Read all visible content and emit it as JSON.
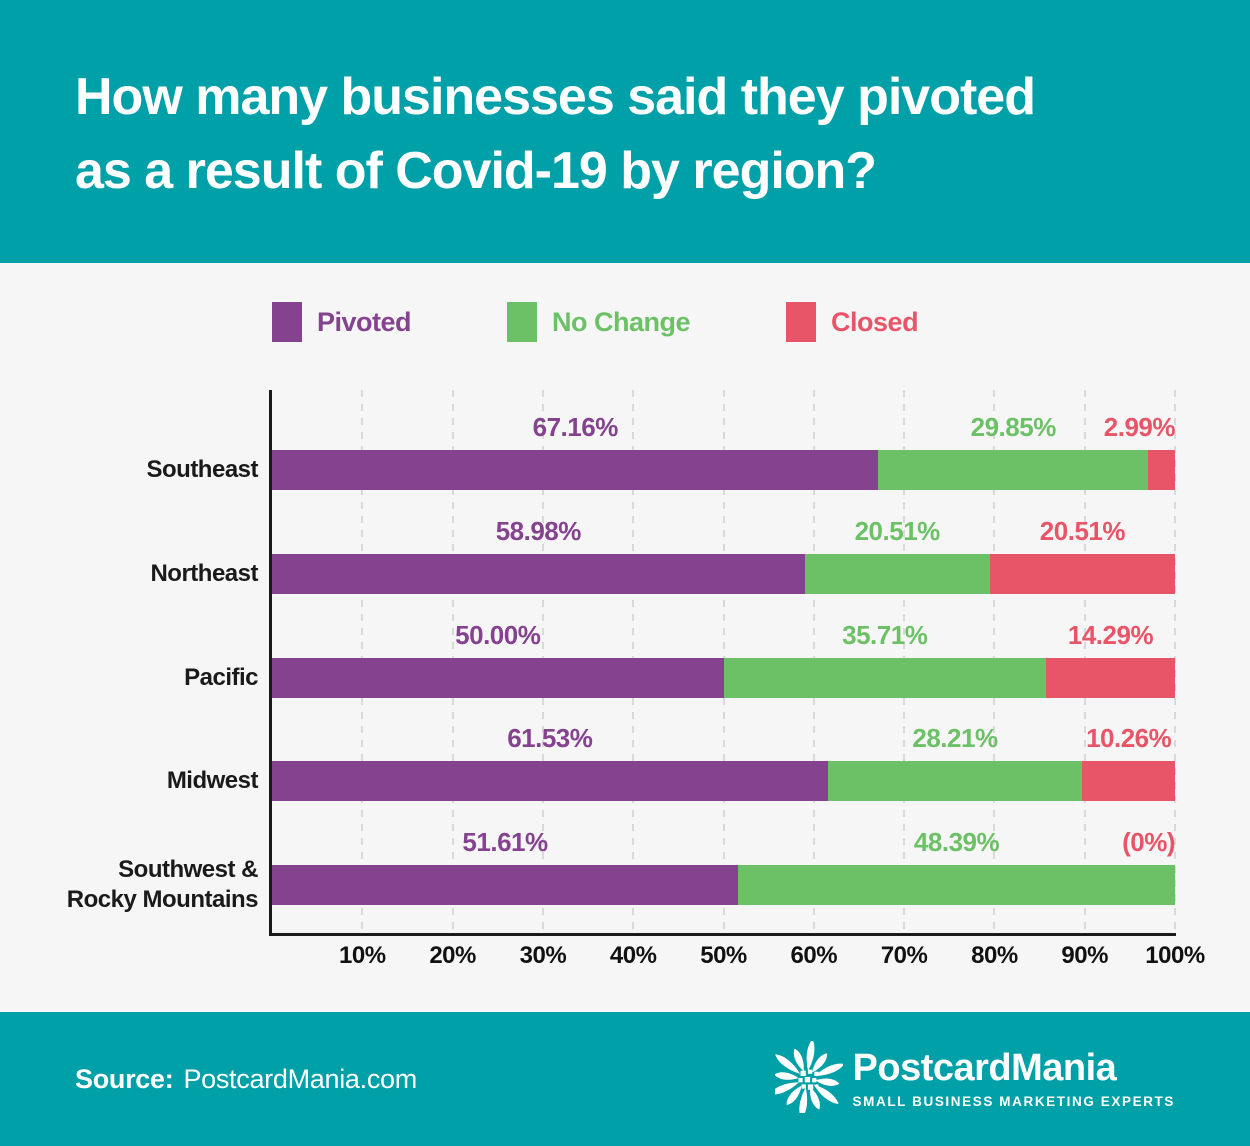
{
  "header": {
    "title": "How many businesses said they pivoted as a result of Covid-19 by region?",
    "title_lines": [
      "How many businesses said they pivoted",
      "as a result of Covid-19 by region?"
    ]
  },
  "chart_data": {
    "type": "bar",
    "orientation": "horizontal",
    "stacked": true,
    "grid": "dashed-vertical",
    "legend_position": "top",
    "xlim": [
      0,
      100
    ],
    "categories": [
      "Southeast",
      "Northeast",
      "Pacific",
      "Midwest",
      "Southwest & Rocky Mountains"
    ],
    "series": [
      {
        "name": "Pivoted",
        "color": "#84428F",
        "values": [
          67.16,
          58.98,
          50.0,
          61.53,
          51.61
        ],
        "labels": [
          "67.16%",
          "58.98%",
          "50.00%",
          "61.53%",
          "51.61%"
        ]
      },
      {
        "name": "No Change",
        "color": "#6CC166",
        "values": [
          29.85,
          20.51,
          35.71,
          28.21,
          48.39
        ],
        "labels": [
          "29.85%",
          "20.51%",
          "35.71%",
          "28.21%",
          "48.39%"
        ]
      },
      {
        "name": "Closed",
        "color": "#E95568",
        "values": [
          2.99,
          20.51,
          14.29,
          10.26,
          0
        ],
        "labels": [
          "2.99%",
          "20.51%",
          "14.29%",
          "10.26%",
          "(0%)"
        ]
      }
    ],
    "x_ticks": [
      "10%",
      "20%",
      "30%",
      "40%",
      "50%",
      "60%",
      "70%",
      "80%",
      "90%",
      "100%"
    ]
  },
  "footer": {
    "source_label": "Source:",
    "source_value": "PostcardMania.com",
    "logo": {
      "icon": "flower-starburst-icon",
      "name": "PostcardMania",
      "tagline": "SMALL BUSINESS MARKETING EXPERTS"
    }
  },
  "colors": {
    "teal": "#00A0A8",
    "background": "#F6F6F6",
    "pivoted_purple": "#84428F",
    "no_change_green": "#6CC166",
    "closed_red": "#E95568",
    "axis": "#1A1A1A",
    "gridline": "#D9D9D9",
    "title_text": "#FFFFFF"
  }
}
